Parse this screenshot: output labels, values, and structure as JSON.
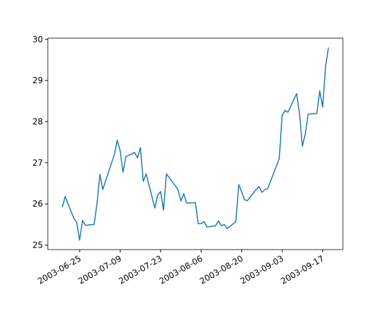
{
  "chart_data": {
    "type": "line",
    "color": "#1f77b4",
    "x": [
      "2003-06-19",
      "2003-06-20",
      "2003-06-23",
      "2003-06-24",
      "2003-06-25",
      "2003-06-26",
      "2003-06-27",
      "2003-06-30",
      "2003-07-01",
      "2003-07-02",
      "2003-07-03",
      "2003-07-07",
      "2003-07-08",
      "2003-07-09",
      "2003-07-10",
      "2003-07-11",
      "2003-07-14",
      "2003-07-15",
      "2003-07-16",
      "2003-07-17",
      "2003-07-18",
      "2003-07-21",
      "2003-07-22",
      "2003-07-23",
      "2003-07-24",
      "2003-07-25",
      "2003-07-28",
      "2003-07-29",
      "2003-07-30",
      "2003-07-31",
      "2003-08-01",
      "2003-08-04",
      "2003-08-05",
      "2003-08-06",
      "2003-08-07",
      "2003-08-08",
      "2003-08-11",
      "2003-08-12",
      "2003-08-13",
      "2003-08-14",
      "2003-08-15",
      "2003-08-18",
      "2003-08-19",
      "2003-08-20",
      "2003-08-21",
      "2003-08-22",
      "2003-08-25",
      "2003-08-26",
      "2003-08-27",
      "2003-08-28",
      "2003-08-29",
      "2003-09-02",
      "2003-09-03",
      "2003-09-04",
      "2003-09-05",
      "2003-09-08",
      "2003-09-09",
      "2003-09-10",
      "2003-09-11",
      "2003-09-12",
      "2003-09-15",
      "2003-09-16",
      "2003-09-17",
      "2003-09-18",
      "2003-09-19"
    ],
    "values": [
      25.92,
      26.18,
      25.65,
      25.55,
      25.12,
      25.6,
      25.48,
      25.5,
      26.0,
      26.72,
      26.35,
      27.2,
      27.55,
      27.3,
      26.77,
      27.15,
      27.25,
      27.12,
      27.37,
      26.55,
      26.73,
      25.9,
      26.22,
      26.3,
      25.85,
      26.73,
      26.45,
      26.35,
      26.07,
      26.25,
      26.02,
      26.03,
      25.52,
      25.52,
      25.57,
      25.44,
      25.47,
      25.59,
      25.47,
      25.5,
      25.4,
      25.57,
      26.47,
      26.3,
      26.1,
      26.08,
      26.35,
      26.42,
      26.28,
      26.35,
      26.37,
      27.1,
      28.15,
      28.27,
      28.23,
      28.68,
      28.2,
      27.4,
      27.7,
      28.18,
      28.2,
      28.75,
      28.35,
      29.33,
      29.8
    ],
    "xlim": [
      "2003-06-14",
      "2003-09-24"
    ],
    "xticks": [
      "2003-06-25",
      "2003-07-09",
      "2003-07-23",
      "2003-08-06",
      "2003-08-20",
      "2003-09-03",
      "2003-09-17"
    ],
    "ylim": [
      24.89,
      30.03
    ],
    "yticks": [
      25,
      26,
      27,
      28,
      29,
      30
    ]
  }
}
